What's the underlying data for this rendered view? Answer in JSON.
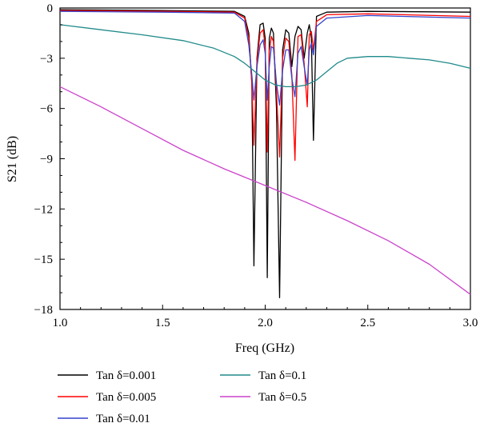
{
  "chart_data": {
    "type": "line",
    "xlabel": "Freq (GHz)",
    "ylabel": "S21 (dB)",
    "xlim": [
      1.0,
      3.0
    ],
    "ylim": [
      -18,
      0
    ],
    "xticks": [
      1.0,
      1.5,
      2.0,
      2.5,
      3.0
    ],
    "xtick_labels": [
      "1.0",
      "1.5",
      "2.0",
      "2.5",
      "3.0"
    ],
    "yticks": [
      0,
      -3,
      -6,
      -9,
      -12,
      -15,
      -18
    ],
    "ytick_labels": [
      "0",
      "−3",
      "−6",
      "−9",
      "−12",
      "−15",
      "−18"
    ],
    "grid": false,
    "legend_position": "below",
    "series": [
      {
        "name": "Tan δ=0.001",
        "color": "#000000",
        "x": [
          1.0,
          1.5,
          1.85,
          1.9,
          1.92,
          1.935,
          1.945,
          1.96,
          1.975,
          1.99,
          2.0,
          2.01,
          2.02,
          2.03,
          2.04,
          2.055,
          2.07,
          2.085,
          2.1,
          2.115,
          2.13,
          2.145,
          2.16,
          2.175,
          2.19,
          2.205,
          2.215,
          2.225,
          2.235,
          2.25,
          2.3,
          2.5,
          3.0
        ],
        "y": [
          -0.1,
          -0.15,
          -0.2,
          -0.5,
          -1.5,
          -4.5,
          -15.4,
          -3.0,
          -1.0,
          -0.9,
          -1.8,
          -16.1,
          -1.8,
          -1.2,
          -1.5,
          -6.0,
          -17.3,
          -2.5,
          -1.3,
          -1.5,
          -3.5,
          -1.7,
          -1.1,
          -1.3,
          -3.0,
          -1.5,
          -1.0,
          -1.8,
          -7.9,
          -0.5,
          -0.25,
          -0.2,
          -0.25
        ]
      },
      {
        "name": "Tan δ=0.005",
        "color": "#ff0000",
        "x": [
          1.0,
          1.5,
          1.85,
          1.9,
          1.92,
          1.935,
          1.945,
          1.96,
          1.975,
          1.99,
          2.0,
          2.01,
          2.02,
          2.03,
          2.04,
          2.055,
          2.07,
          2.085,
          2.1,
          2.115,
          2.13,
          2.145,
          2.16,
          2.175,
          2.19,
          2.205,
          2.215,
          2.225,
          2.235,
          2.25,
          2.3,
          2.5,
          3.0
        ],
        "y": [
          -0.15,
          -0.2,
          -0.25,
          -0.6,
          -1.8,
          -4.5,
          -8.2,
          -3.2,
          -1.5,
          -1.3,
          -2.3,
          -8.6,
          -2.6,
          -1.7,
          -2.0,
          -5.0,
          -8.9,
          -3.0,
          -1.8,
          -2.0,
          -4.0,
          -9.1,
          -1.7,
          -1.6,
          -3.3,
          -5.9,
          -1.6,
          -1.4,
          -2.5,
          -0.8,
          -0.4,
          -0.35,
          -0.5
        ]
      },
      {
        "name": "Tan δ=0.01",
        "color": "#3344cc",
        "x": [
          1.0,
          1.5,
          1.85,
          1.9,
          1.92,
          1.935,
          1.945,
          1.96,
          1.975,
          1.99,
          2.0,
          2.01,
          2.02,
          2.03,
          2.04,
          2.055,
          2.07,
          2.085,
          2.1,
          2.115,
          2.13,
          2.145,
          2.16,
          2.175,
          2.19,
          2.205,
          2.215,
          2.225,
          2.235,
          2.25,
          2.3,
          2.5,
          3.0
        ],
        "y": [
          -0.2,
          -0.25,
          -0.3,
          -0.8,
          -2.2,
          -4.0,
          -5.5,
          -3.5,
          -2.2,
          -1.9,
          -2.7,
          -5.5,
          -3.5,
          -2.3,
          -2.4,
          -4.5,
          -5.8,
          -3.7,
          -2.5,
          -2.5,
          -4.2,
          -5.3,
          -2.7,
          -2.3,
          -3.5,
          -4.6,
          -2.5,
          -2.1,
          -2.8,
          -1.1,
          -0.6,
          -0.45,
          -0.6
        ]
      },
      {
        "name": "Tan δ=0.1",
        "color": "#208a8a",
        "x": [
          1.0,
          1.2,
          1.4,
          1.6,
          1.75,
          1.85,
          1.9,
          1.95,
          2.0,
          2.05,
          2.1,
          2.15,
          2.2,
          2.25,
          2.3,
          2.35,
          2.4,
          2.5,
          2.6,
          2.7,
          2.8,
          2.9,
          3.0
        ],
        "y": [
          -1.0,
          -1.3,
          -1.6,
          -1.95,
          -2.4,
          -2.9,
          -3.3,
          -3.8,
          -4.3,
          -4.6,
          -4.7,
          -4.7,
          -4.6,
          -4.3,
          -3.8,
          -3.3,
          -3.0,
          -2.9,
          -2.9,
          -3.0,
          -3.1,
          -3.3,
          -3.6
        ]
      },
      {
        "name": "Tan δ=0.5",
        "color": "#cc44cc",
        "x": [
          1.0,
          1.2,
          1.4,
          1.6,
          1.8,
          2.0,
          2.2,
          2.4,
          2.6,
          2.8,
          3.0
        ],
        "y": [
          -4.7,
          -5.9,
          -7.2,
          -8.5,
          -9.6,
          -10.6,
          -11.6,
          -12.7,
          -13.9,
          -15.3,
          -17.1
        ]
      }
    ]
  }
}
